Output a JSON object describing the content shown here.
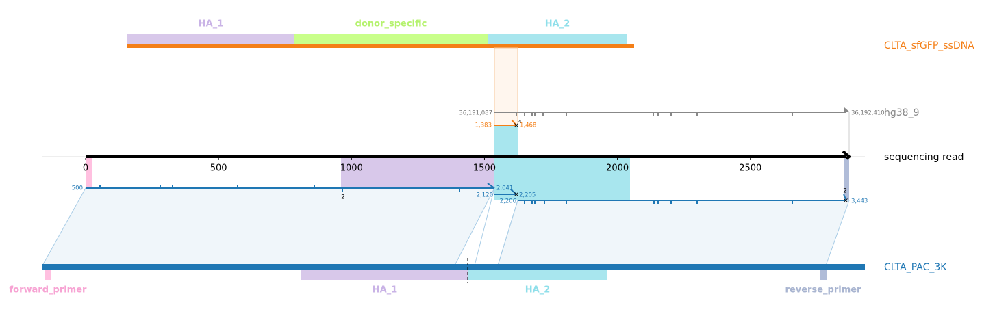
{
  "donor": {
    "name": "CLTA_sfGFP_ssDNA",
    "features": [
      "HA_1",
      "donor_specific",
      "HA_2"
    ]
  },
  "genome": {
    "name": "hg38_9",
    "start": "36,191,087",
    "end": "36,192,410",
    "read_start": "1,383",
    "read_end": "1,468",
    "count": "4"
  },
  "read": {
    "name": "sequencing read",
    "ticks": [
      0,
      500,
      1000,
      1500,
      2000,
      2500
    ],
    "alignments": {
      "a_start": "500",
      "a_end": "2,041",
      "b_start": "2,120",
      "b_end": "2,205",
      "c_start": "2,206",
      "c_end": "3,443",
      "mark_1": "2",
      "mark_2": "2"
    }
  },
  "reference": {
    "name": "CLTA_PAC_3K",
    "features": [
      "forward_primer",
      "HA_1",
      "HA_2",
      "reverse_primer"
    ]
  }
}
